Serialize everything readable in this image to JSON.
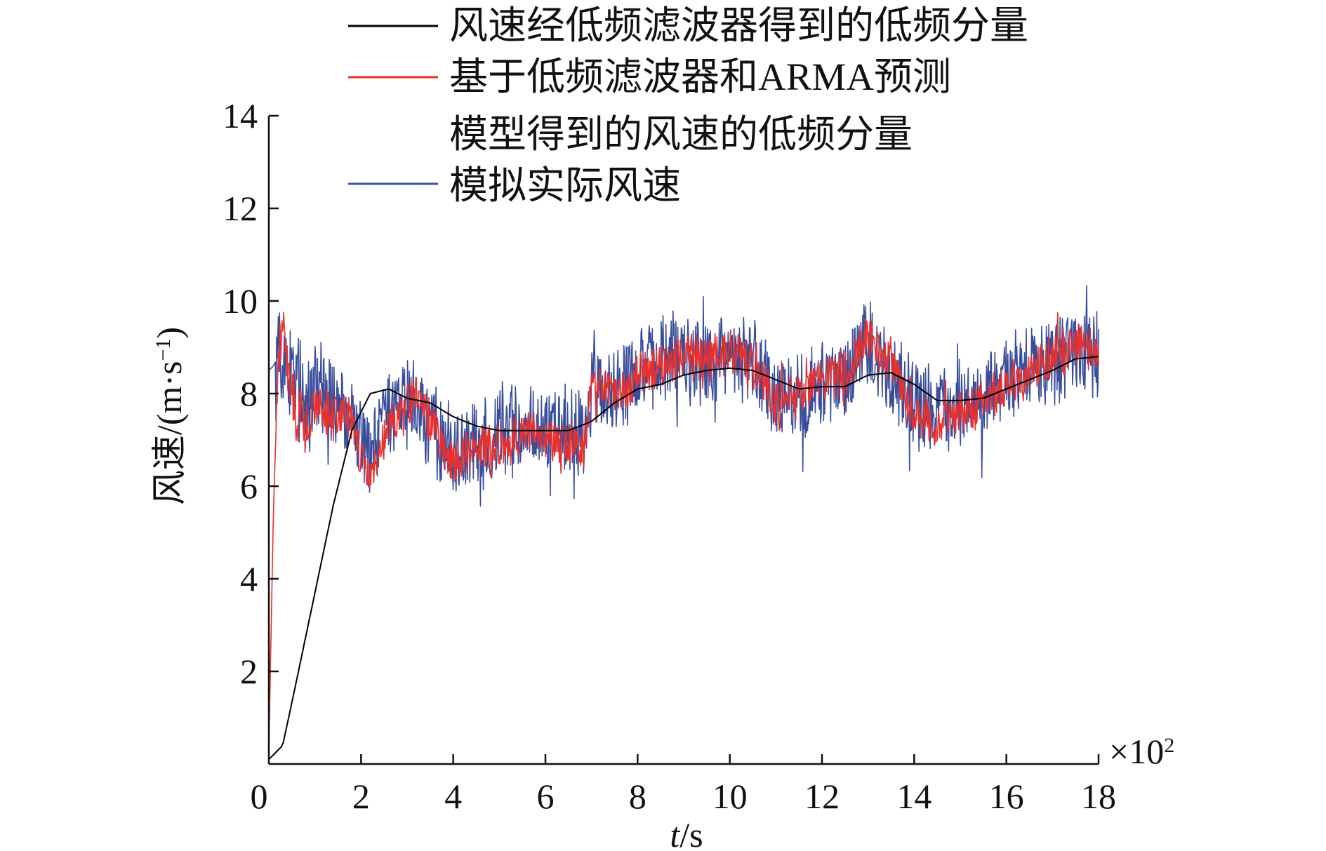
{
  "chart_data": {
    "type": "line",
    "xlabel_italic": "t",
    "xlabel_rest": "/s",
    "ylabel_main": "风速/(m·s",
    "ylabel_sup": "−1",
    "ylabel_close": ")",
    "x_multiplier_base": "×10",
    "x_multiplier_exp": "2",
    "xlim": [
      0,
      18
    ],
    "ylim": [
      0,
      14
    ],
    "xticks": [
      0,
      2,
      4,
      6,
      8,
      10,
      12,
      14,
      16,
      18
    ],
    "yticks": [
      2,
      4,
      6,
      8,
      10,
      12,
      14
    ],
    "legend_position": "top",
    "series": [
      {
        "name": "风速经低频滤波器得到的低频分量",
        "color": "#000000",
        "x": [
          0,
          0.3,
          0.6,
          1.0,
          1.4,
          1.8,
          2.2,
          2.6,
          3.0,
          3.5,
          4.0,
          4.5,
          5.0,
          5.5,
          6.0,
          6.5,
          7.0,
          7.5,
          8.0,
          8.5,
          9.0,
          9.5,
          10.0,
          10.5,
          11.0,
          11.5,
          12.0,
          12.5,
          13.0,
          13.5,
          14.0,
          14.5,
          15.0,
          15.5,
          16.0,
          16.5,
          17.0,
          17.5,
          18.0
        ],
        "y": [
          0.1,
          0.4,
          1.8,
          3.7,
          5.6,
          7.2,
          8.0,
          8.1,
          7.9,
          7.8,
          7.5,
          7.3,
          7.2,
          7.2,
          7.2,
          7.2,
          7.4,
          7.8,
          8.1,
          8.2,
          8.4,
          8.5,
          8.55,
          8.5,
          8.3,
          8.1,
          8.15,
          8.15,
          8.4,
          8.45,
          8.2,
          7.85,
          7.85,
          7.9,
          8.1,
          8.3,
          8.5,
          8.75,
          8.8
        ]
      },
      {
        "name": "基于低频滤波器和ARMA预测",
        "name_line2": "模型得到的风速的低频分量",
        "color": "#e8312f",
        "x": [
          0,
          0.1,
          0.2,
          0.3,
          0.4,
          0.5,
          0.6,
          0.7,
          0.8,
          0.9,
          1.0,
          1.2,
          1.4,
          1.6,
          1.8,
          2.0,
          2.2,
          2.5,
          2.8,
          3.0,
          3.2,
          3.5,
          3.8,
          4.0,
          4.3,
          4.6,
          5.0,
          5.4,
          5.8,
          6.2,
          6.6,
          6.9,
          7.0,
          7.5,
          8.0,
          8.5,
          9.0,
          9.5,
          10.0,
          10.5,
          11.0,
          11.5,
          12.0,
          12.5,
          12.8,
          13.0,
          13.2,
          13.5,
          14.0,
          14.5,
          15.0,
          15.5,
          16.0,
          16.5,
          17.0,
          17.5,
          18.0
        ],
        "y": [
          0.3,
          5.5,
          8.5,
          9.5,
          8.6,
          8.0,
          7.4,
          7.8,
          7.3,
          7.6,
          7.9,
          7.6,
          7.4,
          7.6,
          7.4,
          6.5,
          6.2,
          7.0,
          7.5,
          7.8,
          7.9,
          7.4,
          6.8,
          6.5,
          6.7,
          6.8,
          6.9,
          7.0,
          7.2,
          7.0,
          6.9,
          7.0,
          8.2,
          8.0,
          8.4,
          8.6,
          8.8,
          8.8,
          8.9,
          8.7,
          7.8,
          7.9,
          8.3,
          8.4,
          8.8,
          9.3,
          9.0,
          8.6,
          7.6,
          7.3,
          7.6,
          7.8,
          8.2,
          8.4,
          8.8,
          9.0,
          8.9
        ],
        "noise_amplitude": 0.45
      },
      {
        "name": "模拟实际风速",
        "color": "#3a4e9c",
        "x": [
          0,
          0.1,
          0.2,
          0.3,
          0.4,
          0.5,
          0.6,
          0.7,
          0.8,
          0.9,
          1.0,
          1.2,
          1.4,
          1.6,
          1.8,
          2.0,
          2.2,
          2.5,
          2.8,
          3.0,
          3.2,
          3.5,
          3.8,
          4.0,
          4.3,
          4.6,
          5.0,
          5.4,
          5.8,
          6.2,
          6.6,
          6.9,
          7.0,
          7.5,
          8.0,
          8.5,
          9.0,
          9.5,
          10.0,
          10.5,
          11.0,
          11.5,
          12.0,
          12.5,
          12.8,
          13.0,
          13.2,
          13.5,
          14.0,
          14.5,
          15.0,
          15.5,
          16.0,
          16.5,
          17.0,
          17.5,
          18.0
        ],
        "y": [
          8.5,
          8.6,
          8.8,
          8.9,
          8.6,
          8.3,
          8.0,
          8.0,
          7.9,
          8.0,
          8.1,
          8.0,
          7.8,
          7.7,
          7.5,
          6.9,
          6.7,
          7.3,
          7.6,
          7.9,
          7.8,
          7.3,
          6.9,
          6.7,
          6.9,
          7.0,
          7.2,
          7.2,
          7.3,
          7.2,
          7.1,
          7.2,
          8.0,
          8.1,
          8.5,
          8.7,
          8.8,
          8.7,
          8.8,
          8.6,
          8.0,
          8.0,
          8.2,
          8.4,
          8.9,
          9.1,
          8.8,
          8.4,
          7.8,
          7.6,
          7.8,
          8.0,
          8.3,
          8.4,
          8.7,
          8.9,
          8.8
        ],
        "noise_amplitude": 0.9
      }
    ]
  }
}
